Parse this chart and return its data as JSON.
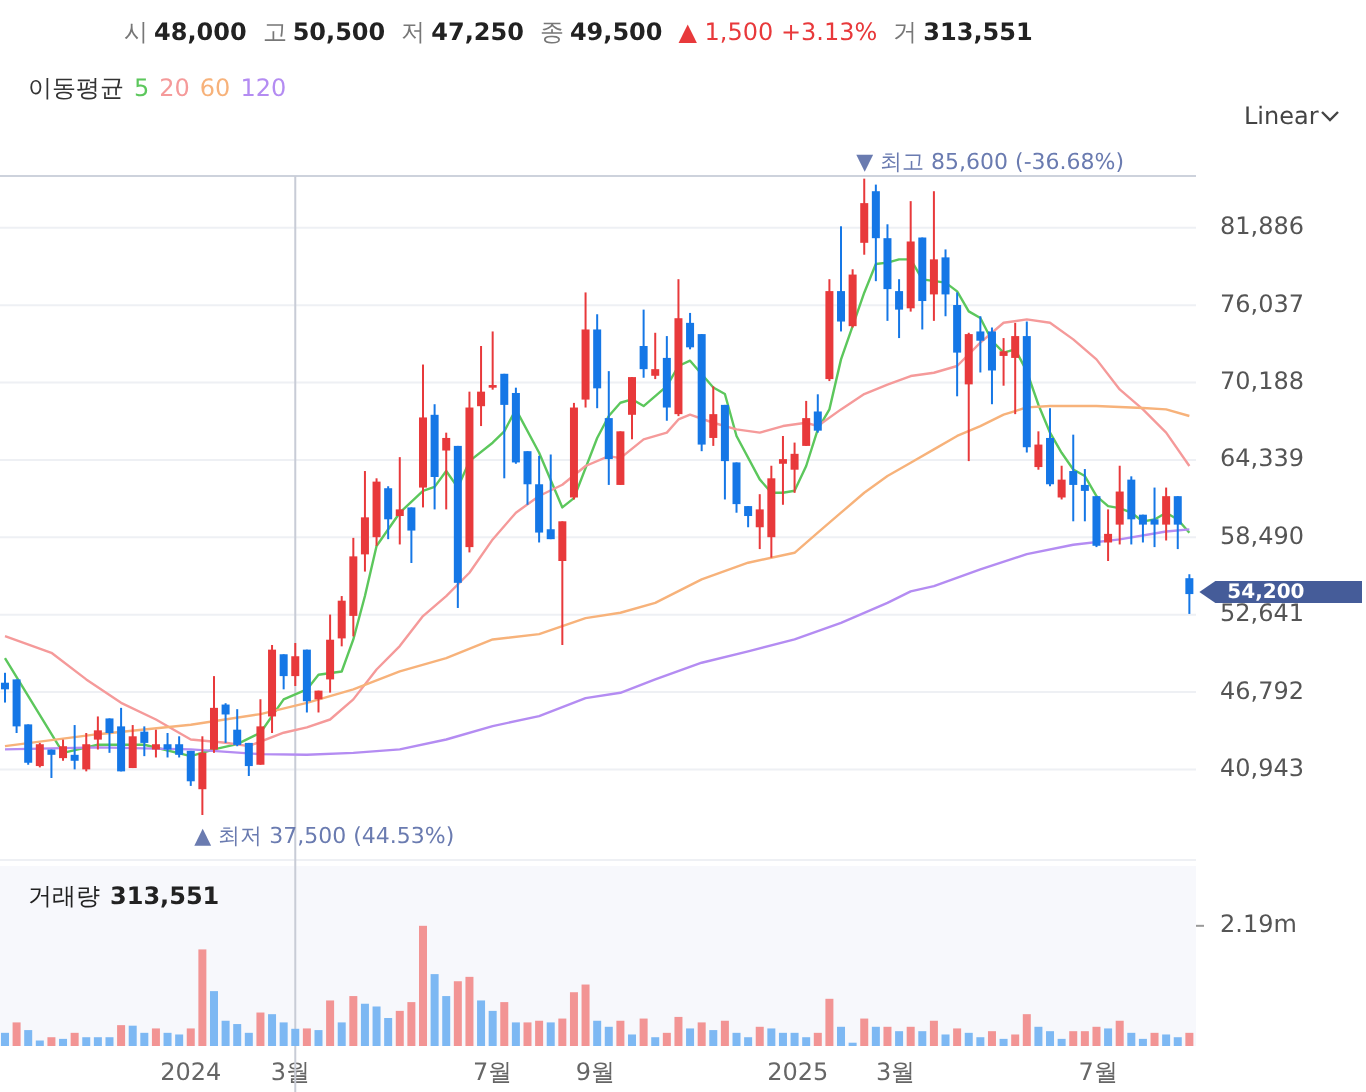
{
  "chart_data": [
    {
      "type": "candlestick",
      "legend_title": "이동평균",
      "legend": "top left",
      "grid": "y",
      "tick_labels": "y",
      "annotations": [
        "시 48,000",
        "고 50,500",
        "저 47,250",
        "종 49,500",
        "▲ 1,500 +3.13%",
        "거 313,551",
        "Linear",
        {
          "text": "▼ 최고 85,600 (-36.68%)",
          "x": "2025-02-10",
          "y": 85600
        },
        {
          "text": "▲ 최저 37,500 (44.53%)",
          "x": "2024-01-08",
          "y": 37500
        },
        {
          "text": "54,200",
          "x": "2025-08-25",
          "y": 54200
        }
      ],
      "xlim": [
        "2023-09-08",
        "2025-08-29"
      ],
      "ylim": [
        34100,
        85800
      ],
      "yticks": [
        {
          "value": 40943,
          "label": "40,943"
        },
        {
          "value": 46792,
          "label": "46,792"
        },
        {
          "value": 52641,
          "label": "52,641"
        },
        {
          "value": 58490,
          "label": "58,490"
        },
        {
          "value": 64339,
          "label": "64,339"
        },
        {
          "value": 70188,
          "label": "70,188"
        },
        {
          "value": 76037,
          "label": "76,037"
        },
        {
          "value": 81886,
          "label": "81,886"
        }
      ],
      "ref_lines": [
        {
          "axis": "x",
          "value": "2024-03-04",
          "color": "#c8ccd6"
        }
      ],
      "x": [
        "2023-09-11",
        "2023-09-18",
        "2023-09-25",
        "2023-10-02",
        "2023-10-09",
        "2023-10-16",
        "2023-10-23",
        "2023-10-30",
        "2023-11-06",
        "2023-11-13",
        "2023-11-20",
        "2023-11-27",
        "2023-12-04",
        "2023-12-11",
        "2023-12-18",
        "2023-12-25",
        "2024-01-01",
        "2024-01-08",
        "2024-01-15",
        "2024-01-22",
        "2024-01-29",
        "2024-02-05",
        "2024-02-12",
        "2024-02-19",
        "2024-02-26",
        "2024-03-04",
        "2024-03-11",
        "2024-03-18",
        "2024-03-25",
        "2024-04-01",
        "2024-04-08",
        "2024-04-15",
        "2024-04-22",
        "2024-04-29",
        "2024-05-06",
        "2024-05-13",
        "2024-05-20",
        "2024-05-27",
        "2024-06-03",
        "2024-06-10",
        "2024-06-17",
        "2024-06-24",
        "2024-07-01",
        "2024-07-08",
        "2024-07-15",
        "2024-07-22",
        "2024-07-29",
        "2024-08-05",
        "2024-08-12",
        "2024-08-19",
        "2024-08-26",
        "2024-09-02",
        "2024-09-09",
        "2024-09-16",
        "2024-09-23",
        "2024-09-30",
        "2024-10-07",
        "2024-10-14",
        "2024-10-21",
        "2024-10-28",
        "2024-11-04",
        "2024-11-11",
        "2024-11-18",
        "2024-11-25",
        "2024-12-02",
        "2024-12-09",
        "2024-12-16",
        "2024-12-23",
        "2024-12-30",
        "2025-01-06",
        "2025-01-13",
        "2025-01-20",
        "2025-01-27",
        "2025-02-03",
        "2025-02-10",
        "2025-02-17",
        "2025-02-24",
        "2025-03-03",
        "2025-03-10",
        "2025-03-17",
        "2025-03-24",
        "2025-03-31",
        "2025-04-07",
        "2025-04-14",
        "2025-04-21",
        "2025-04-28",
        "2025-05-05",
        "2025-05-12",
        "2025-05-19",
        "2025-05-26",
        "2025-06-02",
        "2025-06-09",
        "2025-06-16",
        "2025-06-23",
        "2025-06-30",
        "2025-07-07",
        "2025-07-14",
        "2025-07-21",
        "2025-07-28",
        "2025-08-04",
        "2025-08-11",
        "2025-08-18",
        "2025-08-25"
      ],
      "ohlc": [
        [
          47500,
          48250,
          46000,
          47000
        ],
        [
          47750,
          47750,
          43700,
          44200
        ],
        [
          44350,
          44350,
          41300,
          41450
        ],
        [
          41200,
          42950,
          41100,
          42850
        ],
        [
          42450,
          42450,
          40300,
          42050
        ],
        [
          41800,
          43200,
          41600,
          42700
        ],
        [
          42050,
          44300,
          40950,
          41600
        ],
        [
          40950,
          43700,
          40800,
          42850
        ],
        [
          43200,
          44950,
          42450,
          43900
        ],
        [
          44800,
          44800,
          42200,
          43700
        ],
        [
          44200,
          45600,
          40800,
          40800
        ],
        [
          41050,
          44300,
          41050,
          43450
        ],
        [
          43800,
          44200,
          41950,
          42950
        ],
        [
          42450,
          43950,
          41850,
          42850
        ],
        [
          42850,
          43700,
          41850,
          42450
        ],
        [
          42850,
          43450,
          41850,
          42050
        ],
        [
          42350,
          42350,
          39700,
          40050
        ],
        [
          39450,
          43450,
          37500,
          42200
        ],
        [
          42450,
          48000,
          42200,
          45600
        ],
        [
          45850,
          45950,
          42950,
          45100
        ],
        [
          43950,
          45500,
          42700,
          42800
        ],
        [
          42950,
          42950,
          40450,
          41200
        ],
        [
          41300,
          46250,
          41300,
          44200
        ],
        [
          44950,
          50350,
          43700,
          50000
        ],
        [
          49650,
          49650,
          47000,
          48000
        ],
        [
          48000,
          50500,
          47250,
          49500
        ],
        [
          50000,
          50000,
          45250,
          46100
        ],
        [
          46250,
          46900,
          45250,
          46900
        ],
        [
          47750,
          52650,
          46750,
          50750
        ],
        [
          50850,
          54050,
          50250,
          53700
        ],
        [
          52550,
          58450,
          51000,
          57050
        ],
        [
          57200,
          63500,
          55900,
          60000
        ],
        [
          58500,
          62950,
          57850,
          62700
        ],
        [
          62200,
          62350,
          58350,
          59850
        ],
        [
          60100,
          64550,
          57950,
          60600
        ],
        [
          60750,
          60750,
          56550,
          59000
        ],
        [
          62250,
          71550,
          60750,
          67550
        ],
        [
          67750,
          68550,
          60600,
          63050
        ],
        [
          65050,
          66400,
          60600,
          66000
        ],
        [
          65400,
          65400,
          53150,
          55050
        ],
        [
          57750,
          69500,
          57350,
          68300
        ],
        [
          68400,
          72950,
          66900,
          69500
        ],
        [
          69800,
          74050,
          69650,
          70000
        ],
        [
          70850,
          70850,
          62950,
          68500
        ],
        [
          69400,
          69800,
          64050,
          64150
        ],
        [
          65000,
          65000,
          60950,
          62500
        ],
        [
          62500,
          64650,
          58100,
          58850
        ],
        [
          59100,
          64750,
          58350,
          58350
        ],
        [
          56700,
          59700,
          50350,
          59700
        ],
        [
          61500,
          68650,
          61350,
          68300
        ],
        [
          68900,
          77000,
          68300,
          74200
        ],
        [
          74200,
          75350,
          68250,
          69750
        ],
        [
          67500,
          71050,
          62450,
          64400
        ],
        [
          62450,
          66500,
          62450,
          66500
        ],
        [
          67750,
          70600,
          65900,
          70600
        ],
        [
          72950,
          75700,
          70550,
          71200
        ],
        [
          70700,
          73950,
          70450,
          71200
        ],
        [
          72050,
          73700,
          67300,
          68300
        ],
        [
          67800,
          78000,
          67650,
          75050
        ],
        [
          74700,
          75450,
          72700,
          72850
        ],
        [
          73850,
          73850,
          65000,
          65500
        ],
        [
          66000,
          69900,
          65400,
          67800
        ],
        [
          68500,
          68500,
          61350,
          64250
        ],
        [
          64150,
          64150,
          60350,
          61000
        ],
        [
          60850,
          60850,
          59250,
          60100
        ],
        [
          59250,
          61750,
          57600,
          60600
        ],
        [
          58500,
          63900,
          56950,
          62950
        ],
        [
          64050,
          66150,
          60950,
          64400
        ],
        [
          63600,
          65650,
          61850,
          64800
        ],
        [
          65400,
          68800,
          65400,
          67500
        ],
        [
          68000,
          69300,
          66400,
          66550
        ],
        [
          70450,
          78000,
          70300,
          77100
        ],
        [
          77100,
          82000,
          74050,
          74800
        ],
        [
          74450,
          78750,
          74350,
          78350
        ],
        [
          80750,
          85600,
          79850,
          83750
        ],
        [
          84650,
          85150,
          77850,
          81100
        ],
        [
          81100,
          82150,
          74850,
          77250
        ],
        [
          77100,
          78000,
          73550,
          75700
        ],
        [
          75800,
          83900,
          75550,
          80850
        ],
        [
          81150,
          81150,
          74200,
          76350
        ],
        [
          76850,
          84650,
          74850,
          79500
        ],
        [
          79650,
          80250,
          75200,
          76850
        ],
        [
          76050,
          77000,
          69150,
          72450
        ],
        [
          70050,
          73950,
          64250,
          73850
        ],
        [
          74050,
          75200,
          70950,
          73350
        ],
        [
          74050,
          74350,
          68550,
          71100
        ],
        [
          72200,
          73550,
          69950,
          72550
        ],
        [
          72050,
          74700,
          67800,
          73700
        ],
        [
          73700,
          74800,
          64900,
          65300
        ],
        [
          63800,
          66500,
          63600,
          65500
        ],
        [
          66000,
          68250,
          62350,
          62500
        ],
        [
          61500,
          63900,
          61350,
          62850
        ],
        [
          63500,
          66250,
          59700,
          62450
        ],
        [
          62450,
          63650,
          59700,
          62000
        ],
        [
          61600,
          61600,
          57750,
          57850
        ],
        [
          58100,
          60600,
          56700,
          58750
        ],
        [
          59450,
          63900,
          57950,
          61950
        ],
        [
          62850,
          63100,
          57950,
          59850
        ],
        [
          60200,
          60200,
          58100,
          59450
        ],
        [
          59850,
          62250,
          57750,
          59450
        ],
        [
          59450,
          62250,
          58250,
          61600
        ],
        [
          61600,
          61600,
          57600,
          59450
        ],
        [
          55400,
          55700,
          52700,
          54200
        ]
      ],
      "series": [
        {
          "type": "line",
          "name": "5",
          "color": "#5cc75c",
          "x": [
            "2023-09-11",
            "2023-10-16",
            "2023-11-06",
            "2023-12-04",
            "2024-01-01",
            "2024-01-15",
            "2024-01-29",
            "2024-02-12",
            "2024-02-26",
            "2024-03-11",
            "2024-03-18",
            "2024-04-01",
            "2024-04-08",
            "2024-04-15",
            "2024-04-22",
            "2024-05-06",
            "2024-05-20",
            "2024-05-27",
            "2024-06-03",
            "2024-06-10",
            "2024-06-17",
            "2024-07-01",
            "2024-07-08",
            "2024-07-15",
            "2024-07-29",
            "2024-08-12",
            "2024-08-19",
            "2024-09-02",
            "2024-09-09",
            "2024-09-16",
            "2024-09-23",
            "2024-09-30",
            "2024-10-14",
            "2024-10-21",
            "2024-10-28",
            "2024-11-11",
            "2024-11-18",
            "2024-11-25",
            "2024-12-09",
            "2024-12-16",
            "2024-12-23",
            "2024-12-30",
            "2025-01-06",
            "2025-01-13",
            "2025-01-20",
            "2025-01-27",
            "2025-02-03",
            "2025-02-10",
            "2025-02-17",
            "2025-02-24",
            "2025-03-03",
            "2025-03-10",
            "2025-03-17",
            "2025-03-31",
            "2025-04-07",
            "2025-04-14",
            "2025-04-21",
            "2025-04-28",
            "2025-05-05",
            "2025-05-12",
            "2025-05-19",
            "2025-05-26",
            "2025-06-02",
            "2025-06-09",
            "2025-06-16",
            "2025-06-23",
            "2025-06-30",
            "2025-07-07",
            "2025-07-14",
            "2025-07-21",
            "2025-07-28",
            "2025-08-04",
            "2025-08-11",
            "2025-08-18",
            "2025-08-25"
          ],
          "values": [
            49360,
            42200,
            42810,
            42810,
            41950,
            42460,
            42860,
            43720,
            46240,
            46990,
            48100,
            48350,
            50770,
            54050,
            57830,
            60350,
            62000,
            62300,
            63500,
            62250,
            64250,
            65640,
            66500,
            68160,
            64880,
            60750,
            61450,
            66000,
            67660,
            68660,
            68920,
            68410,
            69920,
            71440,
            71840,
            69820,
            69320,
            66150,
            62870,
            61860,
            61860,
            62010,
            63880,
            66650,
            68160,
            71940,
            74460,
            76980,
            79150,
            79250,
            79500,
            79500,
            77990,
            77740,
            77080,
            75570,
            75070,
            73350,
            72450,
            72700,
            71030,
            68510,
            66400,
            64880,
            63620,
            63120,
            61610,
            60850,
            60700,
            60350,
            59690,
            59840,
            60350,
            59840,
            58830
          ]
        },
        {
          "type": "line",
          "name": "20",
          "color": "#f59a9a",
          "x": [
            "2023-09-11",
            "2023-10-09",
            "2023-10-30",
            "2023-11-20",
            "2023-12-11",
            "2024-01-01",
            "2024-01-22",
            "2024-02-05",
            "2024-02-26",
            "2024-03-11",
            "2024-03-25",
            "2024-04-08",
            "2024-04-22",
            "2024-05-06",
            "2024-05-20",
            "2024-06-03",
            "2024-06-17",
            "2024-07-01",
            "2024-07-15",
            "2024-07-29",
            "2024-08-12",
            "2024-08-26",
            "2024-09-09",
            "2024-09-16",
            "2024-09-30",
            "2024-10-14",
            "2024-10-21",
            "2024-10-28",
            "2024-11-11",
            "2024-11-25",
            "2024-12-09",
            "2024-12-23",
            "2025-01-06",
            "2025-01-13",
            "2025-01-27",
            "2025-02-10",
            "2025-02-24",
            "2025-03-10",
            "2025-03-24",
            "2025-04-07",
            "2025-04-21",
            "2025-05-05",
            "2025-05-19",
            "2025-06-02",
            "2025-06-16",
            "2025-06-30",
            "2025-07-14",
            "2025-07-28",
            "2025-08-11",
            "2025-08-25"
          ],
          "values": [
            51020,
            49760,
            47750,
            45980,
            44720,
            43210,
            42960,
            42710,
            43720,
            44120,
            44720,
            46240,
            48500,
            50270,
            52540,
            54050,
            55810,
            58330,
            60350,
            61610,
            62460,
            63880,
            64630,
            64480,
            65890,
            66400,
            67400,
            67760,
            67150,
            66650,
            66400,
            66900,
            67150,
            66900,
            68160,
            69320,
            70030,
            70680,
            70930,
            71440,
            73200,
            74710,
            74960,
            74710,
            73450,
            71940,
            69670,
            68160,
            66400,
            63880
          ]
        },
        {
          "type": "line",
          "name": "60",
          "color": "#f7b27a",
          "x": [
            "2023-09-11",
            "2023-11-06",
            "2024-01-01",
            "2024-02-12",
            "2024-03-11",
            "2024-04-08",
            "2024-05-06",
            "2024-06-03",
            "2024-07-01",
            "2024-07-29",
            "2024-08-26",
            "2024-09-16",
            "2024-10-07",
            "2024-11-04",
            "2024-12-02",
            "2024-12-30",
            "2025-01-13",
            "2025-01-27",
            "2025-02-10",
            "2025-02-24",
            "2025-03-10",
            "2025-03-24",
            "2025-04-07",
            "2025-04-21",
            "2025-05-05",
            "2025-05-19",
            "2025-06-02",
            "2025-06-30",
            "2025-07-28",
            "2025-08-11",
            "2025-08-25"
          ],
          "values": [
            42710,
            43610,
            44320,
            45130,
            45980,
            46990,
            48350,
            49360,
            50770,
            51170,
            52380,
            52790,
            53540,
            55310,
            56570,
            57320,
            58840,
            60350,
            61860,
            63120,
            64130,
            65140,
            66150,
            66900,
            67760,
            68310,
            68410,
            68410,
            68260,
            68160,
            67660
          ]
        },
        {
          "type": "line",
          "name": "120",
          "color": "#b48cf2",
          "x": [
            "2023-09-11",
            "2023-11-06",
            "2024-01-01",
            "2024-02-12",
            "2024-03-11",
            "2024-04-08",
            "2024-05-06",
            "2024-06-03",
            "2024-07-01",
            "2024-07-29",
            "2024-08-26",
            "2024-09-16",
            "2024-10-07",
            "2024-11-04",
            "2024-12-02",
            "2024-12-30",
            "2025-01-27",
            "2025-02-24",
            "2025-03-10",
            "2025-03-24",
            "2025-04-21",
            "2025-05-19",
            "2025-06-16",
            "2025-07-14",
            "2025-08-11",
            "2025-08-25"
          ],
          "values": [
            42460,
            42610,
            42460,
            42100,
            42050,
            42200,
            42460,
            43210,
            44220,
            44980,
            46340,
            46740,
            47750,
            49010,
            49870,
            50770,
            52030,
            53540,
            54400,
            54800,
            56070,
            57220,
            57930,
            58330,
            58930,
            59090
          ]
        }
      ]
    },
    {
      "type": "bar",
      "title": "거래량",
      "annotations": [
        "313,551"
      ],
      "xlim": [
        "2023-09-08",
        "2025-08-29"
      ],
      "ylim": [
        0,
        3280000
      ],
      "yticks": [
        {
          "value": 0,
          "label": null
        },
        {
          "value": 2190000,
          "label": "2.19m"
        }
      ],
      "xticks": [
        {
          "value": "2024-01-01",
          "label": "2024"
        },
        {
          "value": "2024-03-01",
          "label": "3월"
        },
        {
          "value": "2024-07-01",
          "label": "7월"
        },
        {
          "value": "2024-09-01",
          "label": "9월"
        },
        {
          "value": "2025-01-01",
          "label": "2025"
        },
        {
          "value": "2025-03-01",
          "label": "3월"
        },
        {
          "value": "2025-07-01",
          "label": "7월"
        }
      ],
      "ref_lines": [
        {
          "axis": "x",
          "value": "2024-03-04",
          "color": "#c8ccd6"
        }
      ],
      "x": [
        "2023-09-11",
        "2023-09-18",
        "2023-09-25",
        "2023-10-02",
        "2023-10-09",
        "2023-10-16",
        "2023-10-23",
        "2023-10-30",
        "2023-11-06",
        "2023-11-13",
        "2023-11-20",
        "2023-11-27",
        "2023-12-04",
        "2023-12-11",
        "2023-12-18",
        "2023-12-25",
        "2024-01-01",
        "2024-01-08",
        "2024-01-15",
        "2024-01-22",
        "2024-01-29",
        "2024-02-05",
        "2024-02-12",
        "2024-02-19",
        "2024-02-26",
        "2024-03-04",
        "2024-03-11",
        "2024-03-18",
        "2024-03-25",
        "2024-04-01",
        "2024-04-08",
        "2024-04-15",
        "2024-04-22",
        "2024-04-29",
        "2024-05-06",
        "2024-05-13",
        "2024-05-20",
        "2024-05-27",
        "2024-06-03",
        "2024-06-10",
        "2024-06-17",
        "2024-06-24",
        "2024-07-01",
        "2024-07-08",
        "2024-07-15",
        "2024-07-22",
        "2024-07-29",
        "2024-08-05",
        "2024-08-12",
        "2024-08-19",
        "2024-08-26",
        "2024-09-02",
        "2024-09-09",
        "2024-09-16",
        "2024-09-23",
        "2024-09-30",
        "2024-10-07",
        "2024-10-14",
        "2024-10-21",
        "2024-10-28",
        "2024-11-04",
        "2024-11-11",
        "2024-11-18",
        "2024-11-25",
        "2024-12-02",
        "2024-12-09",
        "2024-12-16",
        "2024-12-23",
        "2024-12-30",
        "2025-01-06",
        "2025-01-13",
        "2025-01-20",
        "2025-01-27",
        "2025-02-03",
        "2025-02-10",
        "2025-02-17",
        "2025-02-24",
        "2025-03-03",
        "2025-03-10",
        "2025-03-17",
        "2025-03-24",
        "2025-03-31",
        "2025-04-07",
        "2025-04-14",
        "2025-04-21",
        "2025-04-28",
        "2025-05-05",
        "2025-05-12",
        "2025-05-19",
        "2025-05-26",
        "2025-06-02",
        "2025-06-09",
        "2025-06-16",
        "2025-06-23",
        "2025-06-30",
        "2025-07-07",
        "2025-07-14",
        "2025-07-21",
        "2025-07-28",
        "2025-08-04",
        "2025-08-11",
        "2025-08-18",
        "2025-08-25"
      ],
      "values": [
        240000,
        430000,
        290000,
        100000,
        160000,
        130000,
        240000,
        160000,
        160000,
        160000,
        380000,
        370000,
        240000,
        320000,
        240000,
        210000,
        320000,
        1760000,
        1000000,
        460000,
        400000,
        240000,
        610000,
        580000,
        430000,
        313551,
        320000,
        290000,
        830000,
        430000,
        910000,
        770000,
        720000,
        510000,
        640000,
        800000,
        2190000,
        1310000,
        910000,
        1180000,
        1260000,
        830000,
        640000,
        800000,
        430000,
        430000,
        460000,
        430000,
        500000,
        980000,
        1120000,
        460000,
        350000,
        460000,
        210000,
        500000,
        160000,
        240000,
        530000,
        320000,
        430000,
        290000,
        460000,
        240000,
        160000,
        350000,
        320000,
        240000,
        240000,
        160000,
        240000,
        860000,
        350000,
        60000,
        500000,
        350000,
        350000,
        270000,
        350000,
        270000,
        460000,
        210000,
        320000,
        240000,
        160000,
        270000,
        130000,
        210000,
        580000,
        350000,
        270000,
        130000,
        270000,
        270000,
        350000,
        320000,
        460000,
        240000,
        130000,
        240000,
        210000,
        160000,
        240000
      ],
      "colors": [
        "#7db8f3",
        "#f29494",
        "#7db8f3",
        "#7db8f3",
        "#f29494",
        "#7db8f3",
        "#f29494",
        "#7db8f3",
        "#7db8f3",
        "#7db8f3",
        "#f29494",
        "#7db8f3",
        "#7db8f3",
        "#f29494",
        "#7db8f3",
        "#7db8f3",
        "#f29494",
        "#f29494",
        "#7db8f3",
        "#7db8f3",
        "#7db8f3",
        "#7db8f3",
        "#f29494",
        "#7db8f3",
        "#7db8f3",
        "#7db8f3",
        "#f29494",
        "#7db8f3",
        "#f29494",
        "#7db8f3",
        "#f29494",
        "#7db8f3",
        "#7db8f3",
        "#7db8f3",
        "#f29494",
        "#f29494",
        "#f29494",
        "#7db8f3",
        "#7db8f3",
        "#f29494",
        "#f29494",
        "#7db8f3",
        "#7db8f3",
        "#f29494",
        "#7db8f3",
        "#f29494",
        "#f29494",
        "#7db8f3",
        "#f29494",
        "#f29494",
        "#f29494",
        "#7db8f3",
        "#7db8f3",
        "#f29494",
        "#7db8f3",
        "#f29494",
        "#7db8f3",
        "#f29494",
        "#f29494",
        "#7db8f3",
        "#f29494",
        "#7db8f3",
        "#f29494",
        "#7db8f3",
        "#7db8f3",
        "#f29494",
        "#7db8f3",
        "#7db8f3",
        "#7db8f3",
        "#7db8f3",
        "#f29494",
        "#f29494",
        "#7db8f3",
        "#7db8f3",
        "#f29494",
        "#7db8f3",
        "#f29494",
        "#7db8f3",
        "#f29494",
        "#7db8f3",
        "#f29494",
        "#7db8f3",
        "#f29494",
        "#7db8f3",
        "#7db8f3",
        "#f29494",
        "#7db8f3",
        "#f29494",
        "#f29494",
        "#7db8f3",
        "#7db8f3",
        "#7db8f3",
        "#f29494",
        "#f29494",
        "#f29494",
        "#7db8f3",
        "#f29494",
        "#7db8f3",
        "#7db8f3",
        "#f29494",
        "#7db8f3",
        "#7db8f3",
        "#f29494"
      ]
    }
  ]
}
